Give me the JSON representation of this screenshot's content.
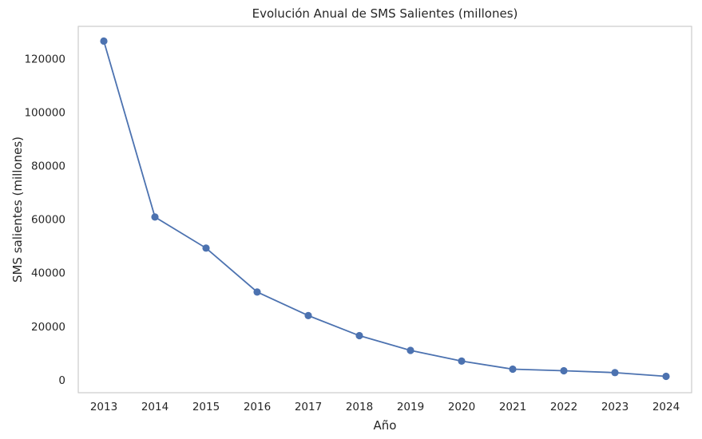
{
  "chart_data": {
    "type": "line",
    "title": "Evolución Anual de SMS Salientes (millones)",
    "xlabel": "Año",
    "ylabel": "SMS salientes (millones)",
    "x": [
      "2013",
      "2014",
      "2015",
      "2016",
      "2017",
      "2018",
      "2019",
      "2020",
      "2021",
      "2022",
      "2023",
      "2024"
    ],
    "series": [
      {
        "values": [
          126500,
          60800,
          49200,
          32800,
          24000,
          16500,
          11000,
          7000,
          4000,
          3400,
          2700,
          1300
        ]
      }
    ],
    "yticks": [
      0,
      20000,
      40000,
      60000,
      80000,
      100000,
      120000
    ],
    "ytick_labels": [
      "0",
      "20000",
      "40000",
      "60000",
      "80000",
      "100000",
      "120000"
    ],
    "ylim": [
      -4800,
      132000
    ],
    "grid": false,
    "legend": "none",
    "colors": {
      "line": "#4c72b0",
      "frame": "#cccccc",
      "text": "#262626"
    }
  }
}
